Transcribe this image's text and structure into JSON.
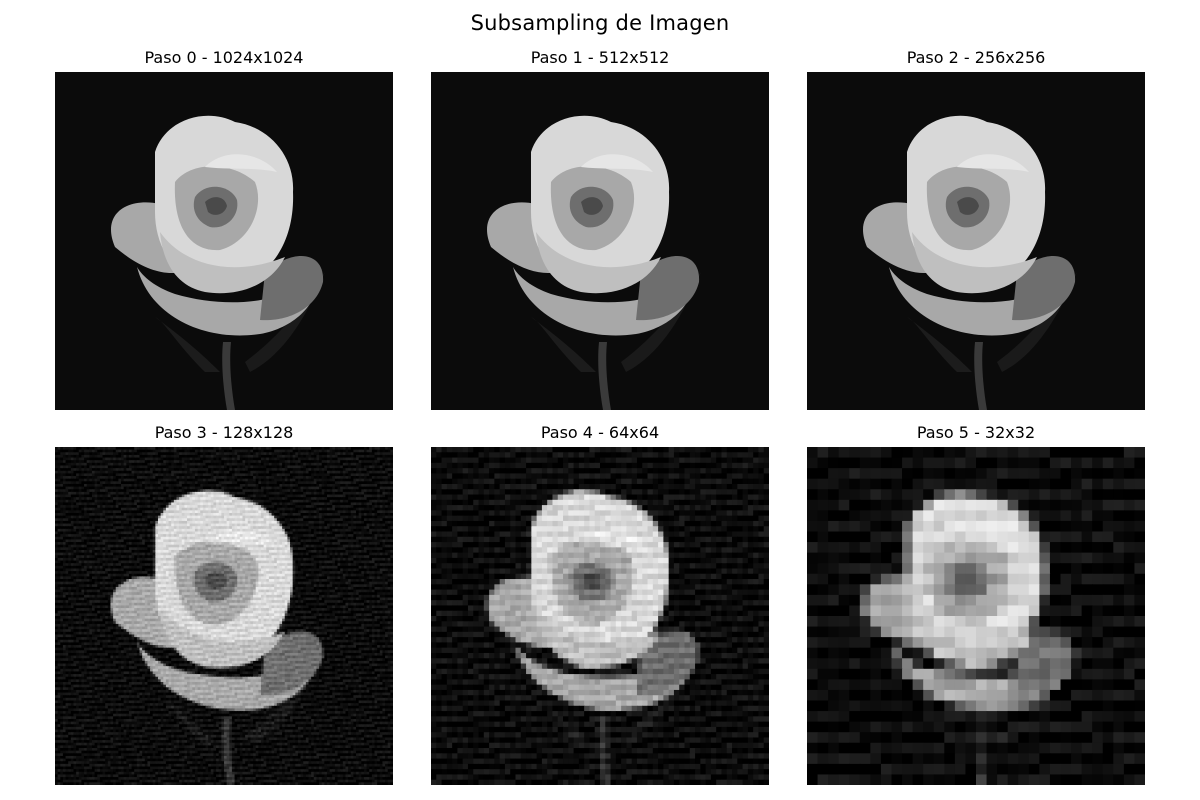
{
  "figure": {
    "suptitle": "Subsampling de Imagen",
    "panels": [
      {
        "title": "Paso 0 - 1024x1024",
        "step": 0,
        "resolution": 1024,
        "image": "grayscale rose on black background"
      },
      {
        "title": "Paso 1 - 512x512",
        "step": 1,
        "resolution": 512,
        "image": "grayscale rose on black background"
      },
      {
        "title": "Paso 2 - 256x256",
        "step": 2,
        "resolution": 256,
        "image": "grayscale rose on black background"
      },
      {
        "title": "Paso 3 - 128x128",
        "step": 3,
        "resolution": 128,
        "image": "grayscale rose on black background"
      },
      {
        "title": "Paso 4 - 64x64",
        "step": 4,
        "resolution": 64,
        "image": "pixelated grayscale rose"
      },
      {
        "title": "Paso 5 - 32x32",
        "step": 5,
        "resolution": 32,
        "image": "heavily pixelated grayscale rose"
      }
    ]
  },
  "colors": {
    "background": "#ffffff",
    "image_background": "#0b0b0b",
    "petal_light": "#d8d8d8",
    "petal_mid": "#a8a8a8",
    "petal_dark": "#6e6e6e",
    "stem": "#3a3a3a"
  }
}
